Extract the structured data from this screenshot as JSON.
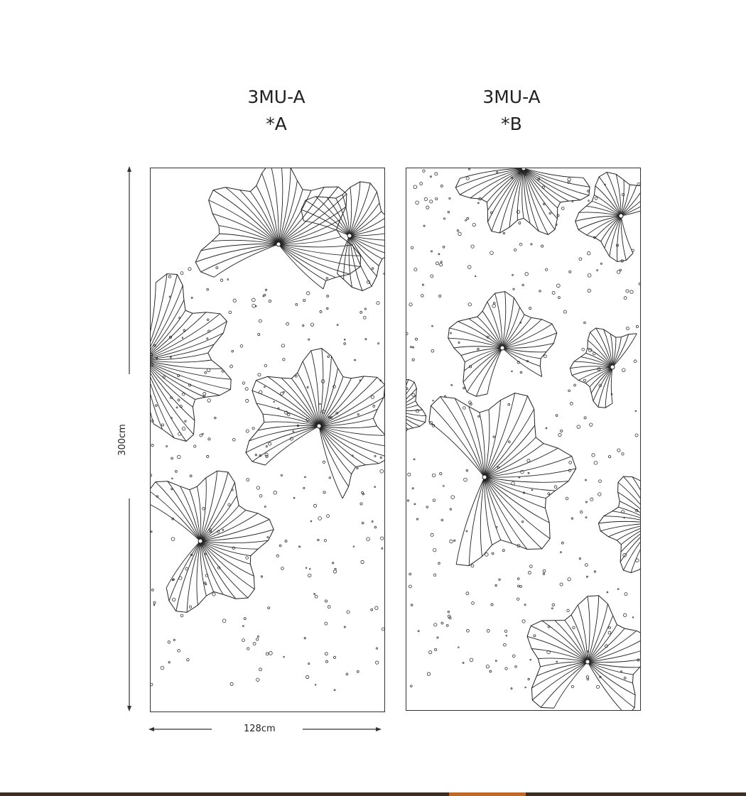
{
  "panels": [
    {
      "code": "3MU-A",
      "variant": "*A"
    },
    {
      "code": "3MU-A",
      "variant": "*B"
    }
  ],
  "dimensions": {
    "height_label": "300cm",
    "width_label": "128cm"
  },
  "colors": {
    "line": "#222222",
    "footer_bar": "#3a2e25",
    "footer_accent": "#c06a2a"
  }
}
